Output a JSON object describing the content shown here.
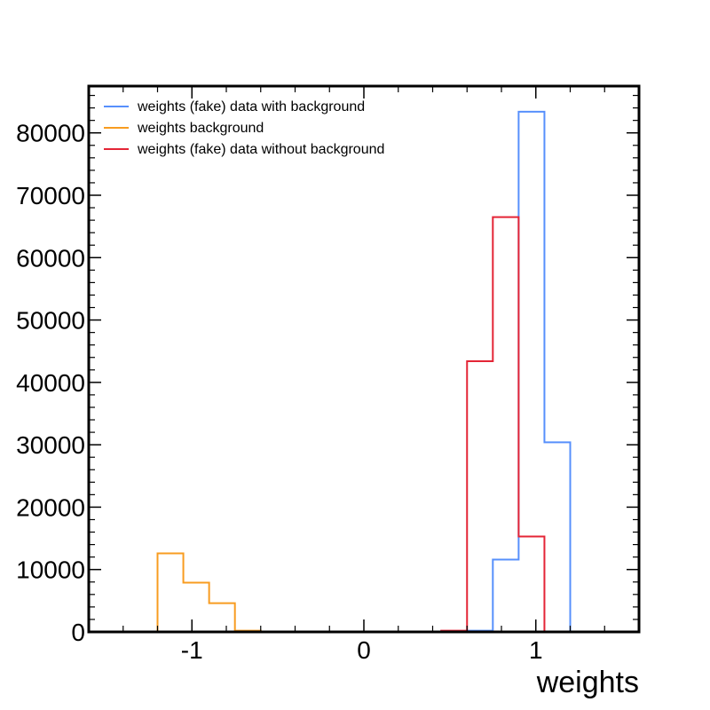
{
  "chart_data": {
    "type": "histogram",
    "title": "",
    "xlabel": "weights",
    "ylabel": "",
    "xlim": [
      -1.6,
      1.6
    ],
    "ylim": [
      0,
      87500
    ],
    "xticks": [
      -1,
      0,
      1
    ],
    "xtick_labels": [
      "-1",
      "0",
      "1"
    ],
    "yticks": [
      0,
      10000,
      20000,
      30000,
      40000,
      50000,
      60000,
      70000,
      80000
    ],
    "ytick_labels": [
      "0",
      "10000",
      "20000",
      "30000",
      "40000",
      "50000",
      "60000",
      "70000",
      "80000"
    ],
    "grid": false,
    "legend_position": "top-left",
    "bin_edges": [
      -1.5,
      -1.35,
      -1.2,
      -1.05,
      -0.9,
      -0.75,
      -0.6,
      -0.45,
      -0.3,
      -0.15,
      0.0,
      0.15,
      0.3,
      0.45,
      0.6,
      0.75,
      0.9,
      1.05,
      1.2,
      1.35,
      1.5
    ],
    "series": [
      {
        "name": "weights (fake) data with background",
        "color": "#5790fc",
        "values": [
          0,
          0,
          0,
          0,
          0,
          0,
          0,
          0,
          0,
          0,
          0,
          0,
          0,
          0,
          200,
          11600,
          83400,
          30400,
          0,
          0
        ]
      },
      {
        "name": "weights background",
        "color": "#f89c20",
        "values": [
          0,
          0,
          12600,
          7900,
          4600,
          200,
          0,
          0,
          0,
          0,
          0,
          0,
          0,
          0,
          0,
          0,
          0,
          0,
          0,
          0
        ]
      },
      {
        "name": "weights (fake) data without background",
        "color": "#e42536",
        "values": [
          0,
          0,
          0,
          0,
          0,
          0,
          0,
          0,
          0,
          0,
          0,
          0,
          0,
          200,
          43400,
          66500,
          15300,
          0,
          0,
          0
        ]
      }
    ]
  }
}
